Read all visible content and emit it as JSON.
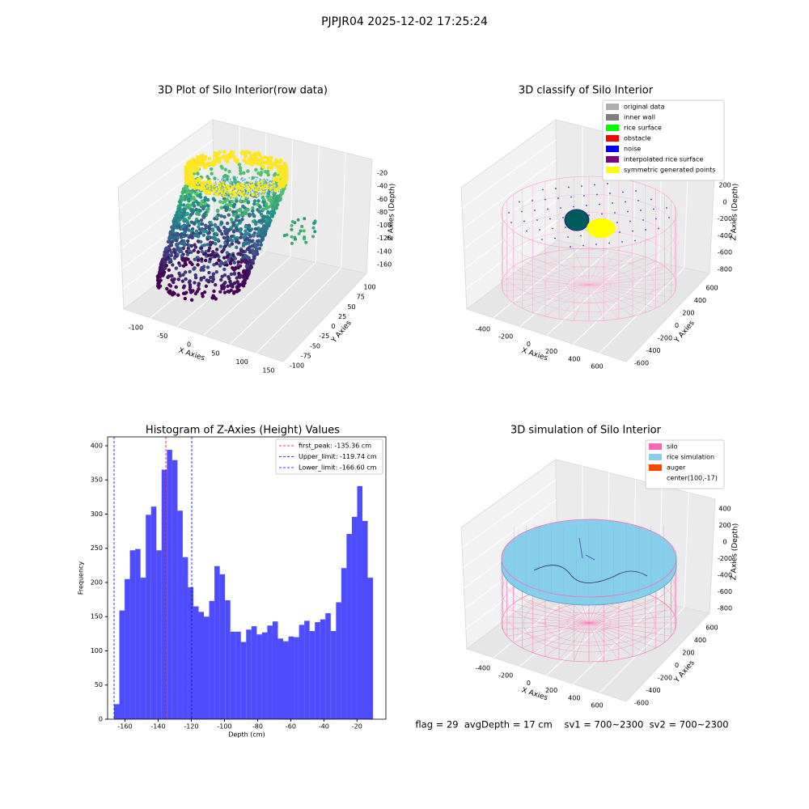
{
  "title": "PJPJR04 2025-12-02 17:25:24",
  "annotation": "flag = 29  avgDepth = 17 cm    sv1 = 700~2300  sv2 = 700~2300",
  "chart_data": [
    {
      "type": "scatter3d",
      "title": "3D Plot of Silo Interior(row data)",
      "xlabel": "X Axies",
      "ylabel": "Y Axies",
      "zlabel": "Z Axies (Depth)",
      "xticks": [
        -100,
        -50,
        0,
        50,
        100,
        150
      ],
      "yticks": [
        -100,
        -75,
        -50,
        -25,
        0,
        25,
        50,
        75,
        100
      ],
      "zticks": [
        -20,
        -40,
        -60,
        -80,
        -100,
        -120,
        -140,
        -160
      ]
    },
    {
      "type": "wireframe3d",
      "title": "3D classify of Silo Interior",
      "xlabel": "X Axies",
      "ylabel": "Y Axies",
      "zlabel": "Z Axies (Depth)",
      "xticks": [
        -400,
        -200,
        0,
        200,
        400,
        600
      ],
      "yticks": [
        -600,
        -400,
        -200,
        0,
        200,
        400,
        600
      ],
      "zticks": [
        -800,
        -600,
        -400,
        -200,
        0,
        200
      ],
      "legend": [
        {
          "name": "original data",
          "color": "#b0b0b0"
        },
        {
          "name": "inner wall",
          "color": "#808080"
        },
        {
          "name": "rice surface",
          "color": "#00ff00"
        },
        {
          "name": "obstacle",
          "color": "#ff0000"
        },
        {
          "name": "noise",
          "color": "#0000ff"
        },
        {
          "name": "interpolated rice surface",
          "color": "#800080"
        },
        {
          "name": "symmetric generated points",
          "color": "#ffff00"
        }
      ]
    },
    {
      "type": "histogram",
      "title": "Histogram of Z-Axies (Height) Values",
      "xlabel": "Depth (cm)",
      "ylabel": "Frequency",
      "color": "#4d4dff",
      "bins": [
        -166.6,
        -163.41,
        -160.22,
        -157.04,
        -153.85,
        -150.66,
        -147.47,
        -144.28,
        -141.1,
        -137.91,
        -134.72,
        -131.53,
        -128.34,
        -125.16,
        -121.97,
        -118.78,
        -115.59,
        -112.4,
        -109.22,
        -106.03,
        -102.84,
        -99.65,
        -96.46,
        -93.28,
        -90.09,
        -86.9,
        -83.71,
        -80.52,
        -77.34,
        -74.15,
        -70.96,
        -67.77,
        -64.58,
        -61.4,
        -58.21,
        -55.02,
        -51.83,
        -48.64,
        -45.46,
        -42.27,
        -39.08,
        -35.89,
        -32.7,
        -29.52,
        -26.33,
        -23.14,
        -19.95,
        -16.76,
        -13.58,
        -10.39
      ],
      "counts": [
        22,
        159,
        205,
        247,
        249,
        207,
        299,
        311,
        247,
        365,
        394,
        379,
        305,
        237,
        193,
        165,
        157,
        150,
        173,
        224,
        212,
        174,
        128,
        128,
        113,
        131,
        136,
        124,
        127,
        137,
        143,
        118,
        114,
        121,
        120,
        138,
        144,
        129,
        142,
        146,
        155,
        129,
        171,
        221,
        271,
        296,
        341,
        290,
        207
      ],
      "xlim": [
        -170.5,
        -2.6
      ],
      "ylim": [
        0,
        413
      ],
      "xticks": [
        -160,
        -140,
        -120,
        -100,
        -80,
        -60,
        -40,
        -20
      ],
      "yticks": [
        0,
        50,
        100,
        150,
        200,
        250,
        300,
        350,
        400
      ],
      "vlines": [
        {
          "value": -135.36,
          "label": "first_peak: -135.36 cm",
          "color": "#ff0000"
        },
        {
          "value": -119.74,
          "label": "Upper_limit: -119.74 cm",
          "color": "#0000ff"
        },
        {
          "value": -166.6,
          "label": "Lower_limit: -166.60 cm",
          "color": "#0000ff"
        }
      ],
      "legend_position": "upper right"
    },
    {
      "type": "surface3d",
      "title": "3D simulation of Silo Interior",
      "xlabel": "X Axies",
      "ylabel": "Y Axies",
      "zlabel": "Z Axies (Depth)",
      "xticks": [
        -400,
        -200,
        0,
        200,
        400,
        600
      ],
      "yticks": [
        -600,
        -400,
        -200,
        0,
        200,
        400,
        600
      ],
      "zticks": [
        -800,
        -600,
        -400,
        -200,
        0,
        200,
        400
      ],
      "legend": [
        {
          "name": "silo",
          "color": "#ff69b4"
        },
        {
          "name": "rice simulation",
          "color": "#87ceeb"
        },
        {
          "name": "auger",
          "color": "#ff4500"
        },
        {
          "name": "center(100,-17)"
        }
      ]
    }
  ]
}
